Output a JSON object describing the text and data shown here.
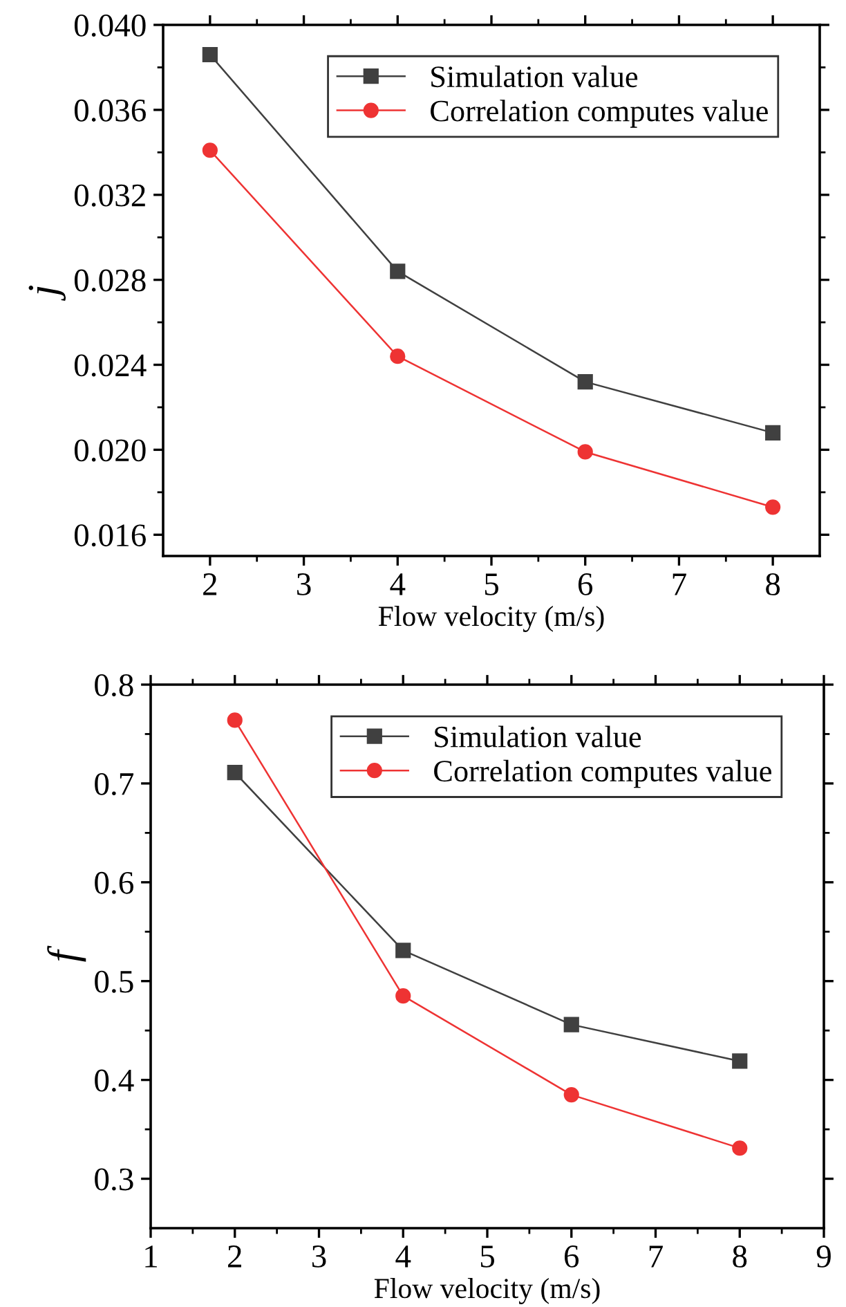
{
  "chart_data": [
    {
      "type": "line",
      "xlabel": "Flow velocity (m/s)",
      "ylabel": "j",
      "x": [
        2,
        4,
        6,
        8
      ],
      "series": [
        {
          "name": "Simulation value",
          "color": "#404040",
          "marker": "square",
          "values": [
            0.0386,
            0.0284,
            0.0232,
            0.0208
          ]
        },
        {
          "name": "Correlation computes value",
          "color": "#ee3333",
          "marker": "circle",
          "values": [
            0.0341,
            0.0244,
            0.0199,
            0.0173
          ]
        }
      ],
      "xlim": [
        1.5,
        8.5
      ],
      "xticks": [
        2,
        3,
        4,
        5,
        6,
        7,
        8
      ],
      "ylim": [
        0.015,
        0.04
      ],
      "yticks": [
        {
          "value": 0.016,
          "label": "0.016"
        },
        {
          "value": 0.02,
          "label": "0.020"
        },
        {
          "value": 0.024,
          "label": "0.024"
        },
        {
          "value": 0.028,
          "label": "0.028"
        },
        {
          "value": 0.032,
          "label": "0.032"
        },
        {
          "value": 0.036,
          "label": "0.036"
        },
        {
          "value": 0.04,
          "label": "0.040"
        }
      ],
      "legend": "top right",
      "grid": false,
      "line_style": "solid"
    },
    {
      "type": "line",
      "xlabel": "Flow velocity (m/s)",
      "ylabel": "f",
      "x": [
        2,
        4,
        6,
        8
      ],
      "series": [
        {
          "name": "Simulation value",
          "color": "#404040",
          "marker": "square",
          "values": [
            0.711,
            0.531,
            0.456,
            0.419
          ]
        },
        {
          "name": "Correlation computes value",
          "color": "#ee3333",
          "marker": "circle",
          "values": [
            0.764,
            0.485,
            0.385,
            0.331
          ]
        }
      ],
      "xlim": [
        1,
        9
      ],
      "xticks": [
        1,
        2,
        3,
        4,
        5,
        6,
        7,
        8,
        9
      ],
      "ylim": [
        0.25,
        0.8
      ],
      "yticks": [
        0.3,
        0.4,
        0.5,
        0.6,
        0.7,
        0.8
      ],
      "legend": "top right",
      "grid": false,
      "line_style": "solid"
    }
  ]
}
